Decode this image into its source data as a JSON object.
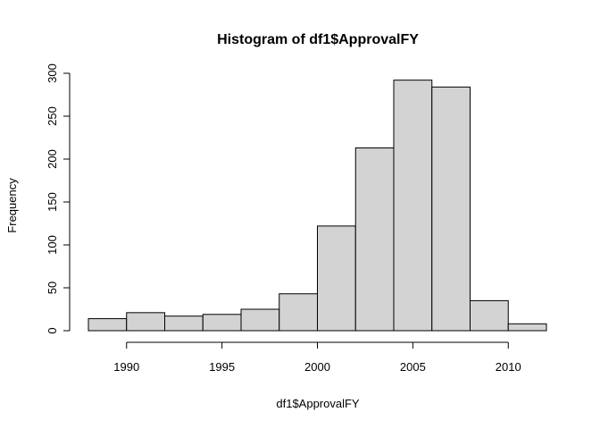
{
  "chart_data": {
    "type": "bar",
    "title": "Histogram of df1$ApprovalFY",
    "xlabel": "df1$ApprovalFY",
    "ylabel": "Frequency",
    "bins": [
      {
        "start": 1988,
        "end": 1990,
        "count": 14
      },
      {
        "start": 1990,
        "end": 1992,
        "count": 21
      },
      {
        "start": 1992,
        "end": 1994,
        "count": 17
      },
      {
        "start": 1994,
        "end": 1996,
        "count": 19
      },
      {
        "start": 1996,
        "end": 1998,
        "count": 25
      },
      {
        "start": 1998,
        "end": 2000,
        "count": 43
      },
      {
        "start": 2000,
        "end": 2002,
        "count": 122
      },
      {
        "start": 2002,
        "end": 2004,
        "count": 213
      },
      {
        "start": 2004,
        "end": 2006,
        "count": 292
      },
      {
        "start": 2006,
        "end": 2008,
        "count": 284
      },
      {
        "start": 2008,
        "end": 2010,
        "count": 35
      },
      {
        "start": 2010,
        "end": 2012,
        "count": 8
      }
    ],
    "xlim": [
      1988,
      2012
    ],
    "ylim": [
      0,
      300
    ],
    "x_ticks": [
      1990,
      1995,
      2000,
      2005,
      2010
    ],
    "y_ticks": [
      0,
      50,
      100,
      150,
      200,
      250,
      300
    ],
    "colors": {
      "bar_fill": "#d3d3d3",
      "bar_stroke": "#000000"
    },
    "grid": false,
    "legend": "none"
  }
}
